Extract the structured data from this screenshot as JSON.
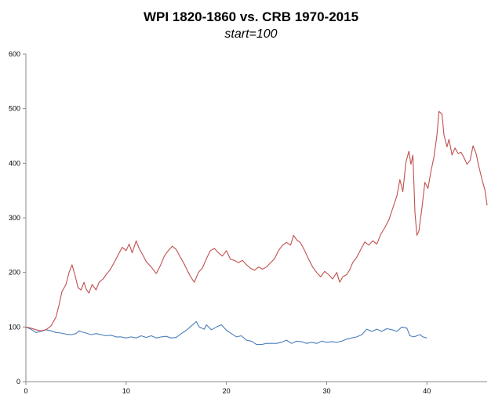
{
  "chart_data": {
    "type": "line",
    "title": "WPI 1820-1860 vs. CRB 1970-2015",
    "subtitle": "start=100",
    "xlabel": "",
    "ylabel": "",
    "xlim": [
      0,
      46
    ],
    "ylim": [
      0,
      600
    ],
    "xticks": [
      0,
      10,
      20,
      30,
      40
    ],
    "yticks": [
      0,
      100,
      200,
      300,
      400,
      500,
      600
    ],
    "grid": false,
    "legend": "none",
    "series": [
      {
        "color": "#4a7ebb",
        "points": [
          [
            0,
            100
          ],
          [
            0.5,
            96
          ],
          [
            1,
            90
          ],
          [
            1.5,
            92
          ],
          [
            2,
            95
          ],
          [
            2.5,
            93
          ],
          [
            3,
            90
          ],
          [
            3.5,
            89
          ],
          [
            4,
            87
          ],
          [
            4.5,
            86
          ],
          [
            5,
            88
          ],
          [
            5.3,
            93
          ],
          [
            5.6,
            91
          ],
          [
            6,
            89
          ],
          [
            6.5,
            86
          ],
          [
            7,
            88
          ],
          [
            7.5,
            86
          ],
          [
            8,
            84
          ],
          [
            8.5,
            85
          ],
          [
            9,
            82
          ],
          [
            9.5,
            82
          ],
          [
            10,
            80
          ],
          [
            10.5,
            82
          ],
          [
            11,
            80
          ],
          [
            11.5,
            84
          ],
          [
            12,
            81
          ],
          [
            12.5,
            84
          ],
          [
            13,
            80
          ],
          [
            13.5,
            82
          ],
          [
            14,
            83
          ],
          [
            14.5,
            80
          ],
          [
            15,
            81
          ],
          [
            15.5,
            88
          ],
          [
            16,
            94
          ],
          [
            16.5,
            102
          ],
          [
            17,
            110
          ],
          [
            17.3,
            100
          ],
          [
            17.8,
            96
          ],
          [
            18,
            104
          ],
          [
            18.5,
            95
          ],
          [
            19,
            100
          ],
          [
            19.5,
            104
          ],
          [
            20,
            94
          ],
          [
            20.5,
            88
          ],
          [
            21,
            82
          ],
          [
            21.5,
            84
          ],
          [
            22,
            76
          ],
          [
            22.5,
            74
          ],
          [
            23,
            68
          ],
          [
            23.5,
            68
          ],
          [
            24,
            70
          ],
          [
            24.5,
            70
          ],
          [
            25,
            70
          ],
          [
            25.5,
            72
          ],
          [
            26,
            76
          ],
          [
            26.5,
            70
          ],
          [
            27,
            74
          ],
          [
            27.5,
            73
          ],
          [
            28,
            70
          ],
          [
            28.5,
            72
          ],
          [
            29,
            70
          ],
          [
            29.5,
            74
          ],
          [
            30,
            72
          ],
          [
            30.5,
            73
          ],
          [
            31,
            72
          ],
          [
            31.5,
            74
          ],
          [
            32,
            78
          ],
          [
            32.5,
            80
          ],
          [
            33,
            82
          ],
          [
            33.5,
            86
          ],
          [
            34,
            96
          ],
          [
            34.5,
            92
          ],
          [
            35,
            96
          ],
          [
            35.5,
            92
          ],
          [
            36,
            97
          ],
          [
            36.5,
            95
          ],
          [
            37,
            92
          ],
          [
            37.5,
            100
          ],
          [
            38,
            98
          ],
          [
            38.3,
            84
          ],
          [
            38.7,
            82
          ],
          [
            39,
            84
          ],
          [
            39.3,
            86
          ],
          [
            39.6,
            82
          ],
          [
            40,
            80
          ]
        ]
      },
      {
        "color": "#c0504d",
        "points": [
          [
            0,
            100
          ],
          [
            0.5,
            98
          ],
          [
            1,
            95
          ],
          [
            1.5,
            93
          ],
          [
            2,
            95
          ],
          [
            2.5,
            102
          ],
          [
            3,
            118
          ],
          [
            3.3,
            140
          ],
          [
            3.6,
            165
          ],
          [
            4,
            178
          ],
          [
            4.3,
            200
          ],
          [
            4.6,
            214
          ],
          [
            4.9,
            195
          ],
          [
            5.2,
            172
          ],
          [
            5.5,
            168
          ],
          [
            5.8,
            182
          ],
          [
            6,
            170
          ],
          [
            6.3,
            162
          ],
          [
            6.6,
            178
          ],
          [
            7,
            168
          ],
          [
            7.3,
            182
          ],
          [
            7.7,
            188
          ],
          [
            8,
            196
          ],
          [
            8.4,
            205
          ],
          [
            8.8,
            218
          ],
          [
            9.2,
            232
          ],
          [
            9.6,
            246
          ],
          [
            10,
            240
          ],
          [
            10.3,
            252
          ],
          [
            10.6,
            236
          ],
          [
            11,
            258
          ],
          [
            11.3,
            244
          ],
          [
            11.6,
            234
          ],
          [
            12,
            220
          ],
          [
            12.5,
            210
          ],
          [
            13,
            198
          ],
          [
            13.4,
            212
          ],
          [
            13.8,
            230
          ],
          [
            14.2,
            240
          ],
          [
            14.6,
            248
          ],
          [
            15,
            242
          ],
          [
            15.4,
            228
          ],
          [
            15.8,
            215
          ],
          [
            16.2,
            200
          ],
          [
            16.5,
            190
          ],
          [
            16.8,
            182
          ],
          [
            17.2,
            200
          ],
          [
            17.6,
            208
          ],
          [
            18,
            225
          ],
          [
            18.4,
            240
          ],
          [
            18.8,
            244
          ],
          [
            19.2,
            236
          ],
          [
            19.6,
            230
          ],
          [
            20,
            240
          ],
          [
            20.4,
            224
          ],
          [
            20.8,
            222
          ],
          [
            21.2,
            218
          ],
          [
            21.6,
            222
          ],
          [
            22,
            214
          ],
          [
            22.4,
            208
          ],
          [
            22.8,
            204
          ],
          [
            23.2,
            210
          ],
          [
            23.6,
            206
          ],
          [
            24,
            210
          ],
          [
            24.4,
            218
          ],
          [
            24.8,
            225
          ],
          [
            25.2,
            240
          ],
          [
            25.6,
            250
          ],
          [
            26,
            255
          ],
          [
            26.4,
            250
          ],
          [
            26.7,
            268
          ],
          [
            27,
            260
          ],
          [
            27.4,
            254
          ],
          [
            27.8,
            240
          ],
          [
            28.2,
            224
          ],
          [
            28.6,
            210
          ],
          [
            29,
            200
          ],
          [
            29.4,
            192
          ],
          [
            29.8,
            202
          ],
          [
            30.2,
            196
          ],
          [
            30.6,
            188
          ],
          [
            31,
            200
          ],
          [
            31.3,
            182
          ],
          [
            31.6,
            192
          ],
          [
            32,
            196
          ],
          [
            32.3,
            205
          ],
          [
            32.6,
            218
          ],
          [
            33,
            228
          ],
          [
            33.4,
            242
          ],
          [
            33.8,
            256
          ],
          [
            34.2,
            250
          ],
          [
            34.6,
            258
          ],
          [
            35,
            252
          ],
          [
            35.4,
            270
          ],
          [
            35.8,
            282
          ],
          [
            36.2,
            296
          ],
          [
            36.6,
            318
          ],
          [
            37,
            340
          ],
          [
            37.3,
            370
          ],
          [
            37.6,
            348
          ],
          [
            37.9,
            402
          ],
          [
            38.2,
            422
          ],
          [
            38.4,
            398
          ],
          [
            38.6,
            415
          ],
          [
            38.8,
            310
          ],
          [
            39,
            268
          ],
          [
            39.2,
            276
          ],
          [
            39.5,
            318
          ],
          [
            39.8,
            365
          ],
          [
            40.1,
            354
          ],
          [
            40.4,
            385
          ],
          [
            40.7,
            412
          ],
          [
            41,
            452
          ],
          [
            41.2,
            495
          ],
          [
            41.5,
            490
          ],
          [
            41.7,
            452
          ],
          [
            42,
            430
          ],
          [
            42.2,
            444
          ],
          [
            42.5,
            415
          ],
          [
            42.8,
            428
          ],
          [
            43.1,
            418
          ],
          [
            43.4,
            420
          ],
          [
            43.7,
            410
          ],
          [
            44,
            398
          ],
          [
            44.3,
            405
          ],
          [
            44.6,
            432
          ],
          [
            44.9,
            418
          ],
          [
            45.2,
            392
          ],
          [
            45.5,
            370
          ],
          [
            45.8,
            350
          ],
          [
            46,
            323
          ]
        ]
      }
    ]
  }
}
